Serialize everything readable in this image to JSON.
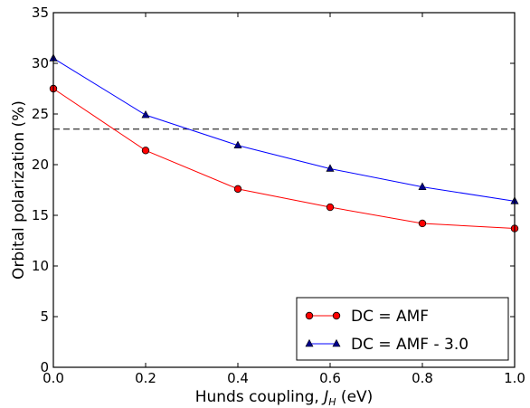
{
  "chart_data": {
    "type": "line",
    "x": [
      0.0,
      0.2,
      0.4,
      0.6,
      0.8,
      1.0
    ],
    "series": [
      {
        "name": "DC = AMF",
        "values": [
          27.5,
          21.4,
          17.6,
          15.8,
          14.2,
          13.7
        ],
        "color": "#ff0000",
        "marker": "circle"
      },
      {
        "name": "DC = AMF - 3.0",
        "values": [
          30.5,
          24.9,
          21.9,
          19.6,
          17.8,
          16.4
        ],
        "color": "#0000ff",
        "marker": "triangle"
      }
    ],
    "reference_line": {
      "y": 23.5,
      "style": "dashed",
      "color": "#000000"
    },
    "xlim": [
      0.0,
      1.0
    ],
    "ylim": [
      0,
      35
    ],
    "xticks": [
      "0.0",
      "0.2",
      "0.4",
      "0.6",
      "0.8",
      "1.0"
    ],
    "yticks": [
      "0",
      "5",
      "10",
      "15",
      "20",
      "25",
      "30",
      "35"
    ],
    "xlabel_prefix": "Hunds coupling, ",
    "xlabel_symbol": "J",
    "xlabel_subscript": "H",
    "xlabel_suffix": " (eV)",
    "ylabel": "Orbital polarization (%)",
    "legend_position": "lower-right",
    "grid": false
  }
}
